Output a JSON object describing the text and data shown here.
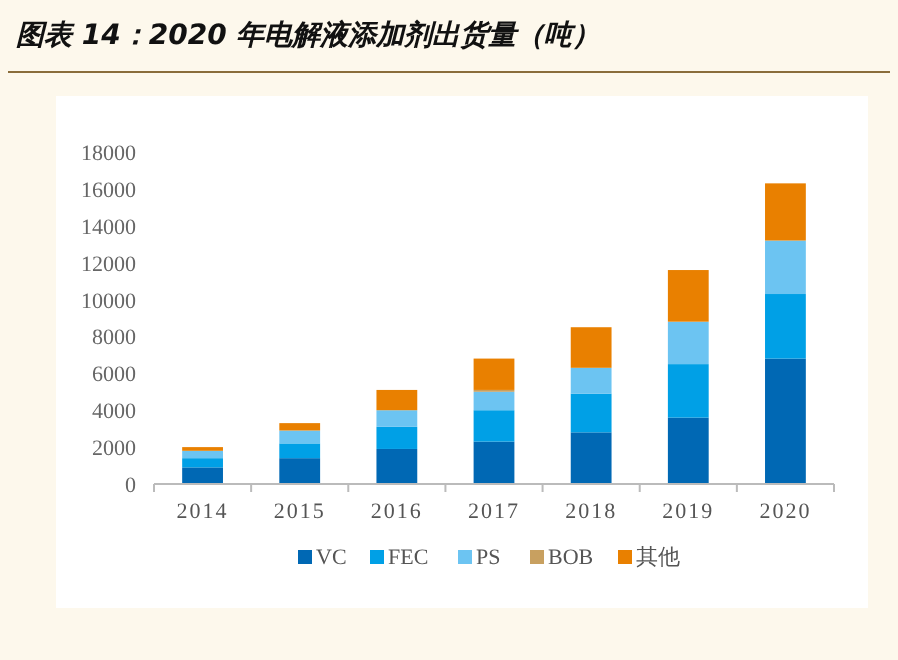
{
  "chart_data": {
    "type": "bar",
    "title": "图表 14：2020 年电解液添加剂出货量（吨）",
    "categories": [
      "2014",
      "2015",
      "2016",
      "2017",
      "2018",
      "2019",
      "2020"
    ],
    "stacked": true,
    "series": [
      {
        "name": "VC",
        "color": "#0068b4",
        "values": [
          900,
          1400,
          1900,
          2300,
          2800,
          3600,
          6800
        ]
      },
      {
        "name": "FEC",
        "color": "#00a0e6",
        "values": [
          500,
          800,
          1200,
          1700,
          2100,
          2900,
          3500
        ]
      },
      {
        "name": "PS",
        "color": "#6cc4f2",
        "values": [
          400,
          700,
          900,
          1000,
          1400,
          2300,
          2900
        ]
      },
      {
        "name": "BOB",
        "color": "#c8a060",
        "values": [
          null,
          null,
          null,
          100,
          null,
          null,
          null
        ]
      },
      {
        "name": "其他",
        "color": "#e98000",
        "values": [
          200,
          400,
          1100,
          1700,
          2200,
          2800,
          3100
        ]
      }
    ],
    "ylim": [
      0,
      18000
    ],
    "yticks": [
      0,
      2000,
      4000,
      6000,
      8000,
      10000,
      12000,
      14000,
      16000,
      18000
    ],
    "legend": "bottom",
    "grid": false
  }
}
